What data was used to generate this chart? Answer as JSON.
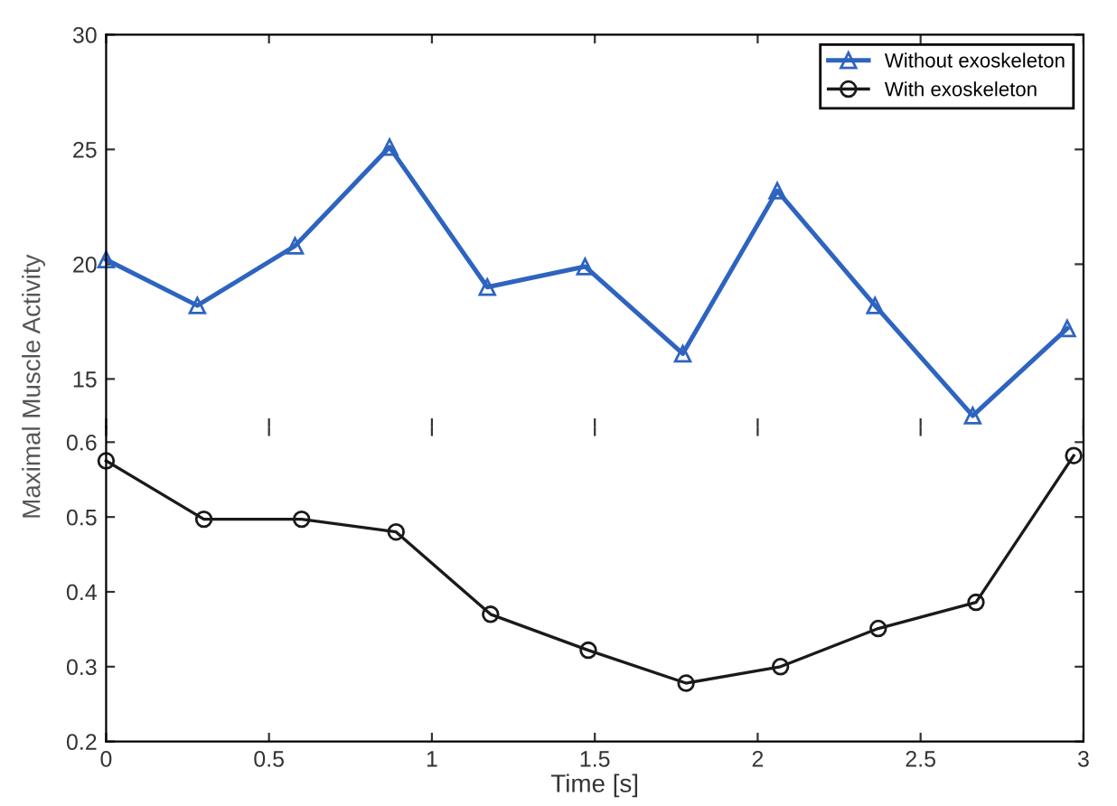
{
  "chart_data": [
    {
      "type": "line",
      "ylabel": "Maximal Muscle Activity",
      "legend": "top right",
      "grid": false,
      "tick_labels": "y",
      "xlim": [
        0,
        3
      ],
      "xticks": [
        0,
        0.5,
        1,
        1.5,
        2,
        2.5,
        3
      ],
      "ylim": [
        12.9,
        30
      ],
      "yticks": [
        15,
        20,
        25,
        30
      ],
      "series": [
        {
          "name": "Without exoskeleton",
          "color": "#2e64c0",
          "marker": "triangle",
          "x": [
            0,
            0.28,
            0.58,
            0.87,
            1.17,
            1.47,
            1.77,
            2.06,
            2.36,
            2.66,
            2.95
          ],
          "values": [
            20.2,
            18.2,
            20.8,
            25.1,
            19.0,
            19.9,
            16.1,
            23.2,
            18.2,
            13.4,
            17.2
          ]
        }
      ]
    },
    {
      "type": "line",
      "xlabel": "Time [s]",
      "legend": "top right",
      "grid": false,
      "xlim": [
        0,
        3
      ],
      "xticks": [
        0,
        0.5,
        1,
        1.5,
        2,
        2.5,
        3
      ],
      "ylim": [
        0.2,
        0.62
      ],
      "yticks": [
        0.2,
        0.3,
        0.4,
        0.5,
        0.6
      ],
      "series": [
        {
          "name": "With exoskeleton",
          "color": "#1a1a1a",
          "marker": "circle",
          "x": [
            0,
            0.3,
            0.6,
            0.89,
            1.18,
            1.48,
            1.78,
            2.07,
            2.37,
            2.67,
            2.97
          ],
          "values": [
            0.575,
            0.497,
            0.497,
            0.48,
            0.37,
            0.322,
            0.278,
            0.3,
            0.351,
            0.386,
            0.582
          ]
        }
      ]
    }
  ]
}
